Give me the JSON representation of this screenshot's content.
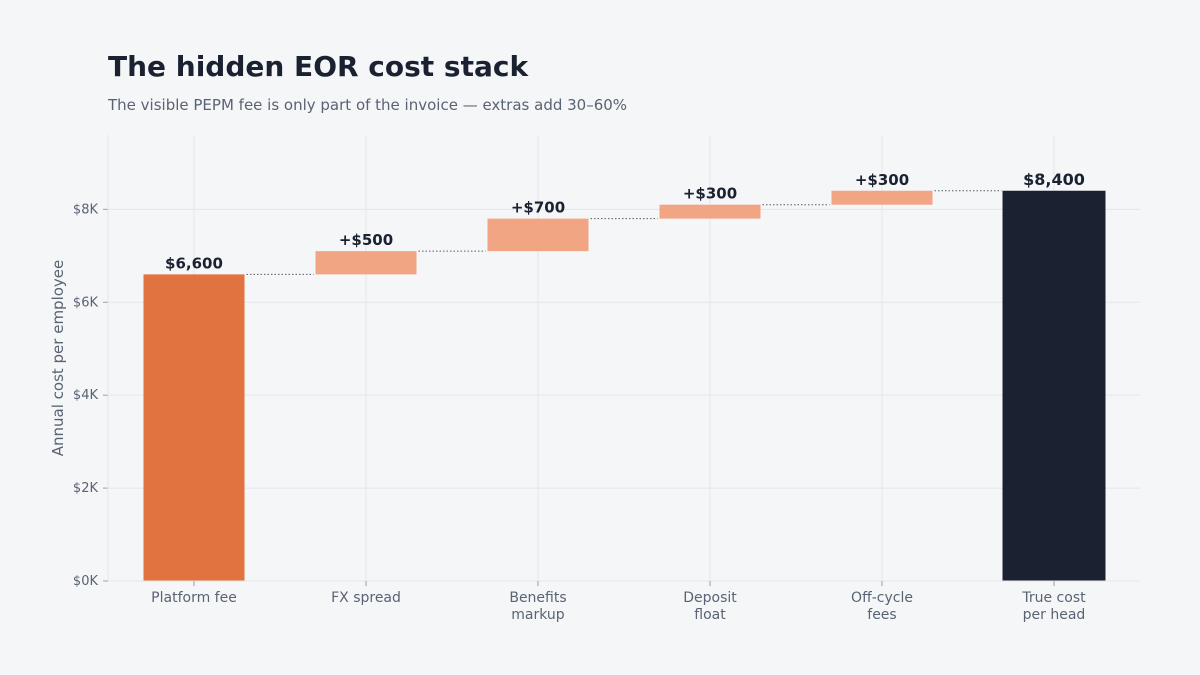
{
  "colors": {
    "background": "#f5f6f8",
    "base_bar": "#e07340",
    "increment_bar": "#f1a583",
    "total_bar": "#1a2130",
    "grid": "#e3e5e9",
    "connector": "#555b66"
  },
  "chart_data": {
    "type": "bar",
    "subtype": "waterfall",
    "title": "The hidden EOR cost stack",
    "subtitle": "The visible PEPM fee is only part of the invoice — extras add 30–60%",
    "xlabel": "",
    "ylabel": "Annual cost per employee",
    "ylim": [
      0,
      9600
    ],
    "yticks": [
      0,
      2000,
      4000,
      6000,
      8000
    ],
    "ytick_labels": [
      "$0K",
      "$2K",
      "$4K",
      "$6K",
      "$8K"
    ],
    "grid": true,
    "categories": [
      [
        "Platform fee"
      ],
      [
        "FX spread"
      ],
      [
        "Benefits",
        "markup"
      ],
      [
        "Deposit",
        "float"
      ],
      [
        "Off-cycle",
        "fees"
      ],
      [
        "True cost",
        "per head"
      ]
    ],
    "bars": [
      {
        "kind": "base",
        "start": 0,
        "end": 6600,
        "value": 6600,
        "label": "$6,600"
      },
      {
        "kind": "increment",
        "start": 6600,
        "end": 7100,
        "value": 500,
        "label": "+$500"
      },
      {
        "kind": "increment",
        "start": 7100,
        "end": 7800,
        "value": 700,
        "label": "+$700"
      },
      {
        "kind": "increment",
        "start": 7800,
        "end": 8100,
        "value": 300,
        "label": "+$300"
      },
      {
        "kind": "increment",
        "start": 8100,
        "end": 8400,
        "value": 300,
        "label": "+$300"
      },
      {
        "kind": "total",
        "start": 0,
        "end": 8400,
        "value": 8400,
        "label": "$8,400"
      }
    ]
  }
}
